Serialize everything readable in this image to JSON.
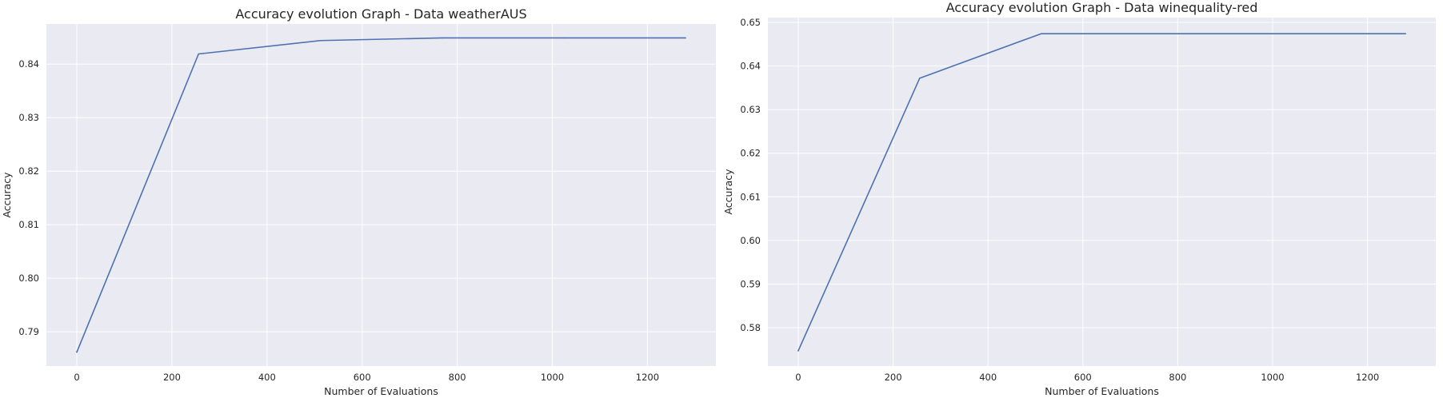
{
  "colors": {
    "axes_bg": "#EAEAF2",
    "grid": "#FFFFFF",
    "line": "#4C72B0",
    "text": "#262626"
  },
  "chart_data": [
    {
      "type": "line",
      "title": "Accuracy evolution Graph - Data weatherAUS",
      "xlabel": "Number of Evaluations",
      "ylabel": "Accuracy",
      "xlim": [
        -64,
        1344
      ],
      "ylim": [
        0.7836,
        0.8475
      ],
      "xticks": [
        0,
        200,
        400,
        600,
        800,
        1000,
        1200
      ],
      "xtick_labels": [
        "0",
        "200",
        "400",
        "600",
        "800",
        "1000",
        "1200"
      ],
      "yticks": [
        0.79,
        0.8,
        0.81,
        0.82,
        0.83,
        0.84
      ],
      "ytick_labels": [
        "0.79",
        "0.80",
        "0.81",
        "0.82",
        "0.83",
        "0.84"
      ],
      "grid": true,
      "series": [
        {
          "x": [
            0,
            256,
            512,
            768,
            1024,
            1280
          ],
          "y": [
            0.7862,
            0.8419,
            0.8444,
            0.8449,
            0.8449,
            0.8449
          ]
        }
      ]
    },
    {
      "type": "line",
      "title": "Accuracy evolution Graph - Data winequality-red",
      "xlabel": "Number of Evaluations",
      "ylabel": "Accuracy",
      "xlim": [
        -64,
        1344
      ],
      "ylim": [
        0.5712,
        0.6511
      ],
      "xticks": [
        0,
        200,
        400,
        600,
        800,
        1000,
        1200
      ],
      "xtick_labels": [
        "0",
        "200",
        "400",
        "600",
        "800",
        "1000",
        "1200"
      ],
      "yticks": [
        0.58,
        0.59,
        0.6,
        0.61,
        0.62,
        0.63,
        0.64,
        0.65
      ],
      "ytick_labels": [
        "0.58",
        "0.59",
        "0.60",
        "0.61",
        "0.62",
        "0.63",
        "0.64",
        "0.65"
      ],
      "grid": true,
      "series": [
        {
          "x": [
            0,
            256,
            512,
            768,
            1024,
            1280
          ],
          "y": [
            0.5747,
            0.6372,
            0.6474,
            0.6474,
            0.6474,
            0.6474
          ]
        }
      ]
    }
  ]
}
